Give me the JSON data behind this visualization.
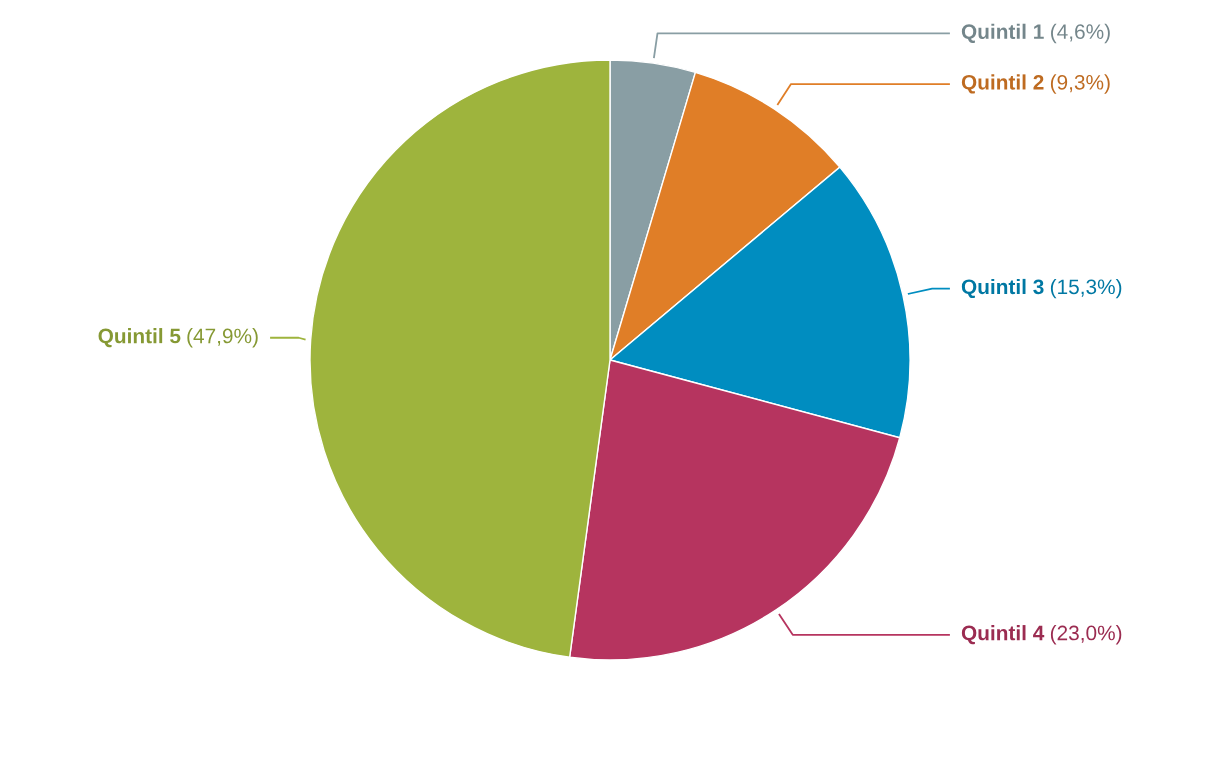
{
  "chart_data": {
    "type": "pie",
    "categories": [
      "Quintil 1",
      "Quintil 2",
      "Quintil 3",
      "Quintil 4",
      "Quintil 5"
    ],
    "values": [
      4.6,
      9.3,
      15.3,
      23.0,
      47.9
    ],
    "value_labels": [
      "(4,6%)",
      "(9,3%)",
      "(15,3%)",
      "(23,0%)",
      "(47,9%)"
    ],
    "colors": [
      "#899ea4",
      "#e07e27",
      "#008dc0",
      "#b6345f",
      "#9eb43d"
    ],
    "legend": false
  }
}
